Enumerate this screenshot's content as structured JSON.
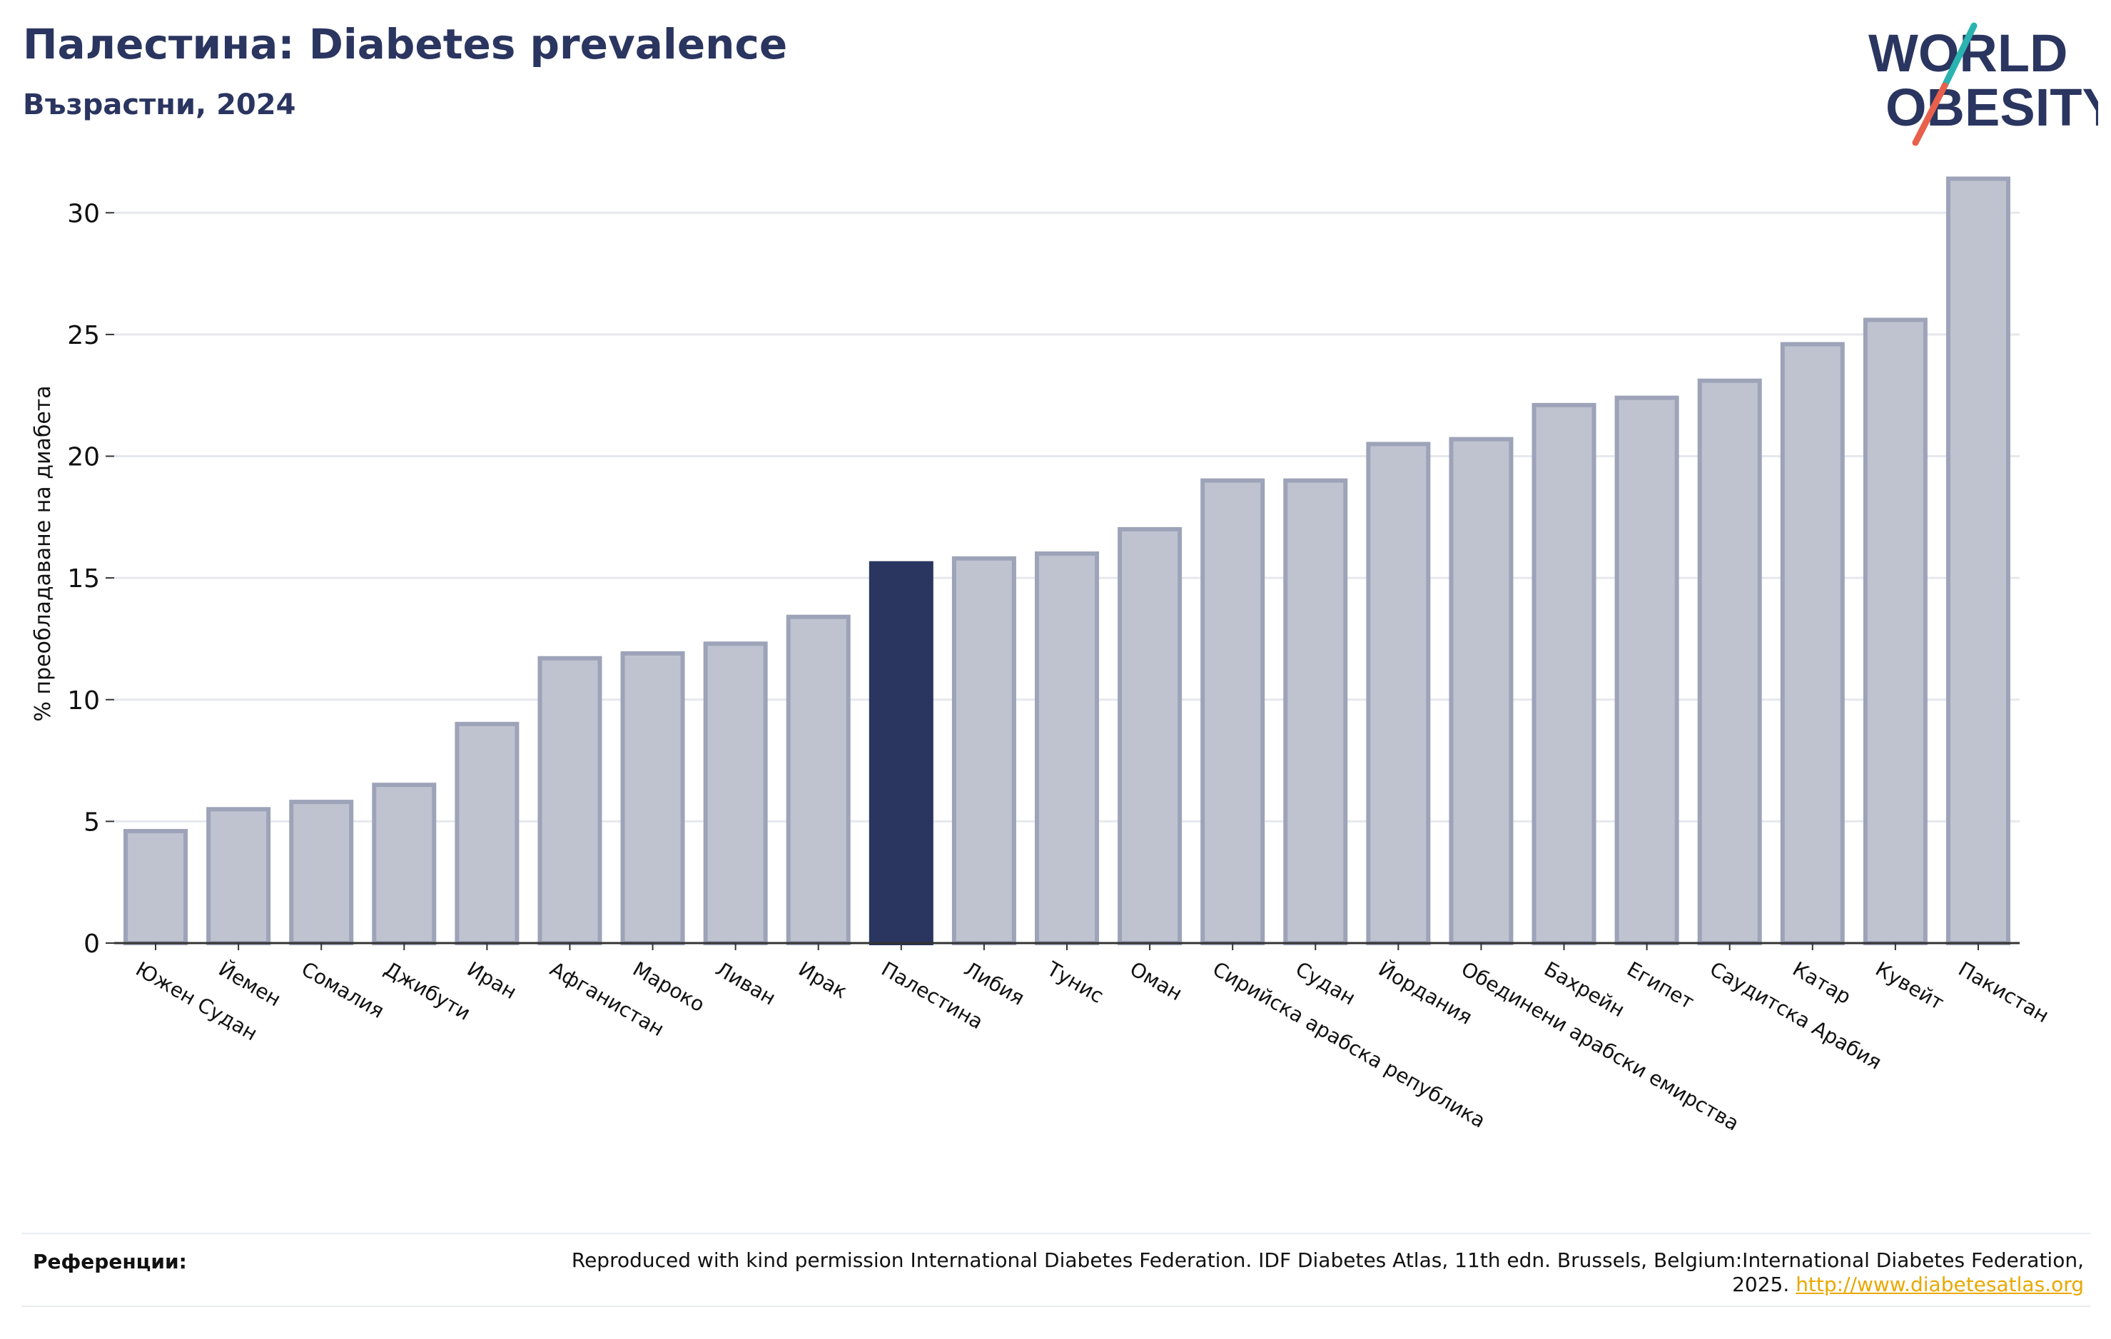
{
  "header": {
    "title": "Палестина: Diabetes prevalence",
    "subtitle": "Възрастни, 2024"
  },
  "logo": {
    "line1": "WORLD",
    "line2": "OBESITY",
    "text_color": "#2a3560",
    "slash_top_color": "#2bb3b1",
    "slash_bottom_color": "#e8604c"
  },
  "chart_data": {
    "type": "bar",
    "ylabel": "% преобладаване на диабета",
    "ylim": [
      0,
      32
    ],
    "yticks": [
      0,
      5,
      10,
      15,
      20,
      25,
      30
    ],
    "grid": true,
    "highlight": "Палестина",
    "colors": {
      "bar": "#bfc3d0",
      "bar_edge": "#9da3b8",
      "highlight": "#2a3560",
      "grid": "#e6e8ee",
      "axis": "#333333"
    },
    "categories": [
      "Южен Судан",
      "Йемен",
      "Сомалия",
      "Джибути",
      "Иран",
      "Афганистан",
      "Мароко",
      "Ливан",
      "Ирак",
      "Палестина",
      "Либия",
      "Тунис",
      "Оман",
      "Сирийска арабска република",
      "Судан",
      "Йордания",
      "Обединени арабски емирства",
      "Бахрейн",
      "Египет",
      "Саудитска Арабия",
      "Катар",
      "Кувейт",
      "Пакистан"
    ],
    "values": [
      4.6,
      5.5,
      5.8,
      6.5,
      9.0,
      11.7,
      11.9,
      12.3,
      13.4,
      15.6,
      15.8,
      16.0,
      17.0,
      19.0,
      19.0,
      20.5,
      20.7,
      22.1,
      22.4,
      23.1,
      24.6,
      25.6,
      31.4
    ]
  },
  "footer": {
    "ref_label": "Референции:",
    "ref_text": "Reproduced with kind permission International Diabetes Federation. IDF Diabetes Atlas, 11th edn. Brussels, Belgium:International Diabetes Federation, 2025.",
    "ref_link": "http://www.diabetesatlas.org"
  }
}
